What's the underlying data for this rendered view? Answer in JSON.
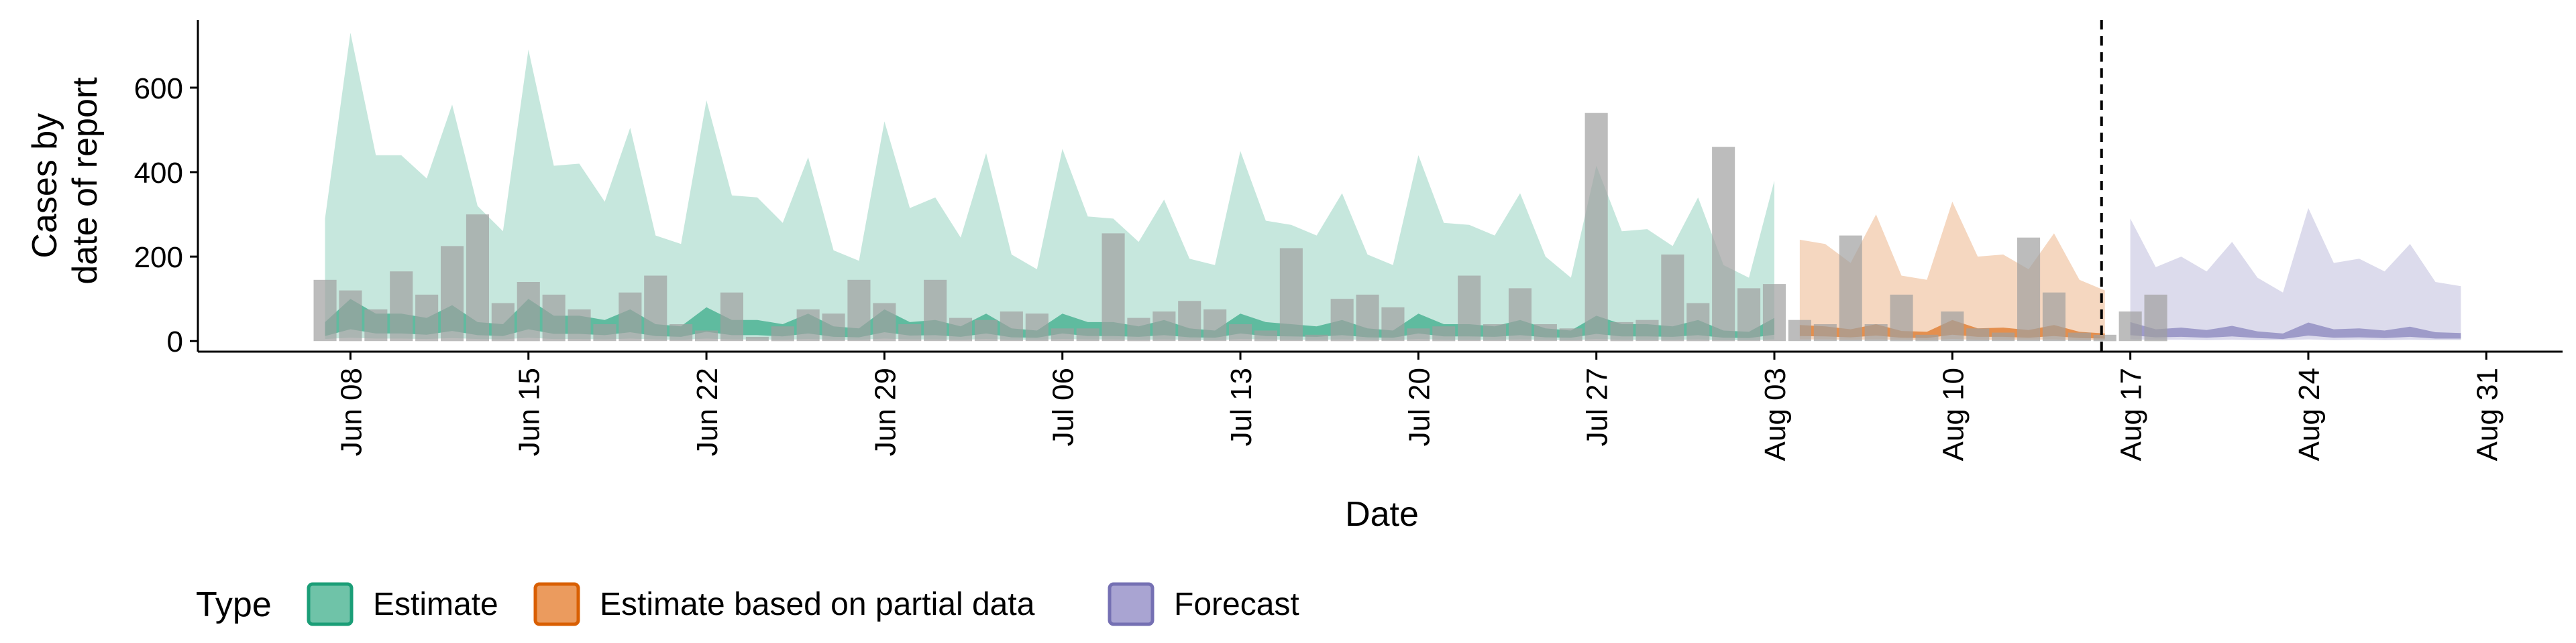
{
  "chart_data": {
    "type": "area",
    "title": "",
    "xlabel": "Date",
    "ylabel": [
      "Cases by",
      "date of report"
    ],
    "ylim": [
      -25,
      760
    ],
    "xlim": [
      "2020-06-02",
      "2020-09-03"
    ],
    "y_ticks": [
      0,
      200,
      400,
      600
    ],
    "x_ticks": [
      "2020-06-08",
      "2020-06-15",
      "2020-06-22",
      "2020-06-29",
      "2020-07-06",
      "2020-07-13",
      "2020-07-20",
      "2020-07-27",
      "2020-08-03",
      "2020-08-10",
      "2020-08-17",
      "2020-08-24",
      "2020-08-31"
    ],
    "x_tick_labels": [
      "Jun 08",
      "Jun 15",
      "Jun 22",
      "Jun 29",
      "Jul 06",
      "Jul 13",
      "Jul 20",
      "Jul 27",
      "Aug 03",
      "Aug 10",
      "Aug 17",
      "Aug 24",
      "Aug 31"
    ],
    "forecast_date": "2020-08-16",
    "grid": false,
    "legend": {
      "title": "Type",
      "position": "bottom-left",
      "entries": [
        {
          "label": "Estimate",
          "fill": "#6fc3a8",
          "border": "#1b9e77"
        },
        {
          "label": "Estimate based on partial data",
          "fill": "#eb9b5e",
          "border": "#d95f02"
        },
        {
          "label": "Forecast",
          "fill": "#a9a4d2",
          "border": "#7570b3"
        }
      ]
    },
    "series": [
      {
        "type": "Estimate",
        "color": "#1b9e77",
        "start": "2020-06-07",
        "upper_outer": [
          290,
          730,
          440,
          440,
          385,
          560,
          320,
          260,
          690,
          415,
          420,
          330,
          505,
          250,
          230,
          570,
          345,
          340,
          280,
          435,
          215,
          190,
          520,
          315,
          340,
          245,
          445,
          205,
          170,
          455,
          295,
          290,
          235,
          335,
          195,
          180,
          450,
          285,
          275,
          250,
          350,
          205,
          180,
          440,
          280,
          275,
          250,
          350,
          200,
          150,
          415,
          260,
          265,
          225,
          340,
          180,
          150,
          380
        ],
        "upper_inner": [
          45,
          100,
          65,
          65,
          55,
          85,
          45,
          40,
          100,
          60,
          60,
          50,
          75,
          40,
          35,
          80,
          50,
          50,
          40,
          65,
          35,
          30,
          75,
          45,
          50,
          35,
          65,
          30,
          25,
          65,
          45,
          45,
          35,
          50,
          30,
          25,
          65,
          45,
          40,
          35,
          50,
          30,
          25,
          65,
          40,
          40,
          35,
          50,
          30,
          25,
          60,
          40,
          40,
          35,
          50,
          25,
          22,
          55
        ],
        "lower_inner": [
          12,
          28,
          18,
          18,
          15,
          24,
          14,
          12,
          28,
          17,
          17,
          14,
          21,
          12,
          10,
          22,
          14,
          14,
          11,
          18,
          10,
          9,
          21,
          13,
          14,
          10,
          18,
          9,
          8,
          18,
          12,
          12,
          10,
          14,
          9,
          8,
          18,
          12,
          11,
          10,
          14,
          9,
          8,
          18,
          11,
          11,
          10,
          14,
          9,
          8,
          17,
          11,
          11,
          10,
          14,
          8,
          7,
          15
        ],
        "lower_outer": [
          5,
          8,
          6,
          6,
          5,
          7,
          5,
          4,
          8,
          5,
          5,
          4,
          6,
          4,
          3,
          6,
          4,
          4,
          3,
          5,
          3,
          3,
          6,
          4,
          4,
          3,
          5,
          3,
          3,
          5,
          4,
          4,
          3,
          4,
          3,
          2,
          5,
          4,
          3,
          3,
          4,
          3,
          2,
          5,
          3,
          3,
          3,
          4,
          3,
          2,
          5,
          3,
          3,
          3,
          4,
          2,
          2,
          4
        ]
      },
      {
        "type": "Estimate based on partial data",
        "color": "#d95f02",
        "start": "2020-08-04",
        "upper_outer": [
          240,
          230,
          185,
          300,
          155,
          145,
          330,
          200,
          205,
          170,
          255,
          145,
          120
        ],
        "upper_inner": [
          38,
          35,
          28,
          40,
          24,
          22,
          50,
          30,
          32,
          26,
          38,
          22,
          18
        ],
        "lower_inner": [
          12,
          11,
          9,
          13,
          8,
          7,
          15,
          10,
          10,
          8,
          12,
          7,
          6
        ],
        "lower_outer": [
          4,
          4,
          3,
          4,
          3,
          2,
          5,
          3,
          3,
          3,
          4,
          2,
          2
        ]
      },
      {
        "type": "Forecast",
        "color": "#7570b3",
        "start": "2020-08-17",
        "upper_outer": [
          290,
          175,
          200,
          165,
          235,
          150,
          115,
          315,
          185,
          195,
          165,
          230,
          140,
          130
        ],
        "upper_inner": [
          45,
          28,
          32,
          26,
          36,
          23,
          18,
          44,
          28,
          30,
          25,
          34,
          21,
          19
        ],
        "lower_inner": [
          14,
          9,
          10,
          8,
          11,
          7,
          5,
          13,
          8,
          9,
          7,
          10,
          6,
          6
        ],
        "lower_outer": [
          4,
          3,
          3,
          2,
          3,
          2,
          2,
          4,
          2,
          3,
          2,
          3,
          2,
          2
        ]
      }
    ],
    "reported_cases": {
      "color": "#a0a0a0",
      "start": "2020-06-07",
      "values": [
        145,
        120,
        75,
        165,
        110,
        225,
        300,
        90,
        140,
        110,
        75,
        40,
        115,
        155,
        40,
        25,
        115,
        10,
        35,
        75,
        65,
        145,
        90,
        40,
        145,
        55,
        50,
        70,
        65,
        30,
        30,
        255,
        55,
        70,
        95,
        75,
        40,
        25,
        220,
        15,
        100,
        110,
        80,
        30,
        35,
        155,
        40,
        125,
        40,
        30,
        540,
        45,
        50,
        205,
        90,
        460,
        125,
        135,
        50,
        40,
        250,
        40,
        110,
        15,
        70,
        30,
        20,
        245,
        115,
        20,
        15,
        70,
        110
      ]
    }
  }
}
